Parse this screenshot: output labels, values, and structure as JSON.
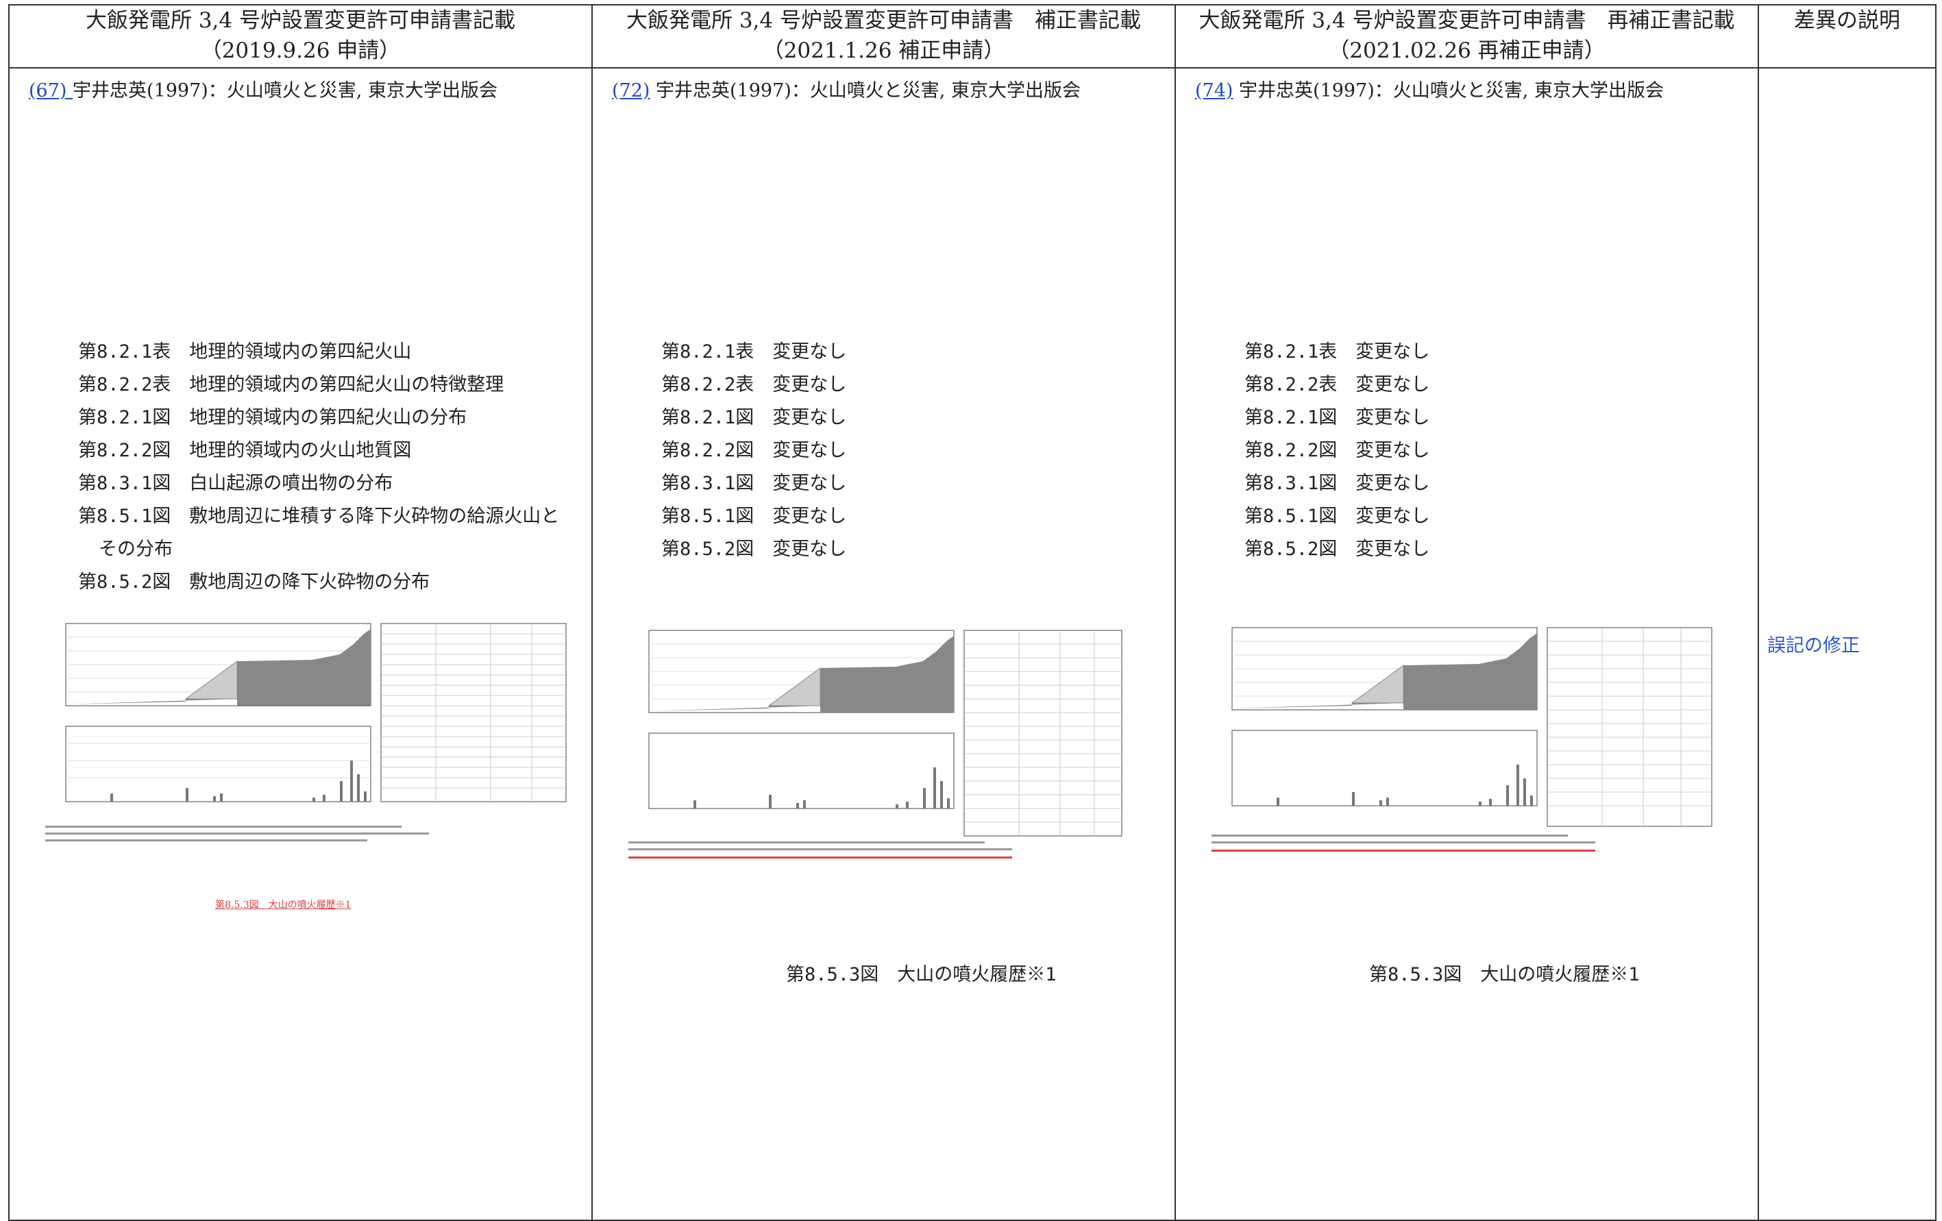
{
  "headers": [
    {
      "title": "大飯発電所 3,4 号炉設置変更許可申請書記載",
      "sub": "（2019.9.26 申請）"
    },
    {
      "title": "大飯発電所 3,4 号炉設置変更許可申請書　補正書記載",
      "sub": "（2021.1.26 補正申請）"
    },
    {
      "title": "大飯発電所 3,4 号炉設置変更許可申請書　再補正書記載",
      "sub": "（2021.02.26 再補正申請）"
    },
    {
      "title": "差異の説明",
      "sub": ""
    }
  ],
  "columns": [
    {
      "ref_num": "(67) ",
      "ref_text": "宇井忠英(1997)：火山噴火と災害, 東京大学出版会",
      "items": [
        "第8.2.1表　地理的領域内の第四紀火山",
        "第8.2.2表　地理的領域内の第四紀火山の特徴整理",
        "第8.2.1図　地理的領域内の第四紀火山の分布",
        "第8.2.2図　地理的領域内の火山地質図",
        "第8.3.1図　白山起源の噴出物の分布",
        "第8.5.1図　敷地周辺に堆積する降下火砕物の給源火山と",
        "その分布",
        "第8.5.2図　敷地周辺の降下火砕物の分布"
      ],
      "small_caption": "第8.5.3図　大山の噴火履歴※1"
    },
    {
      "ref_num": "(72)",
      "ref_text": " 宇井忠英(1997)：火山噴火と災害, 東京大学出版会",
      "items": [
        "第8.2.1表　変更なし",
        "第8.2.2表　変更なし",
        "第8.2.1図　変更なし",
        "第8.2.2図　変更なし",
        "第8.3.1図　変更なし",
        "第8.5.1図　変更なし",
        "第8.5.2図　変更なし"
      ],
      "caption": "第8.5.3図　大山の噴火履歴※1"
    },
    {
      "ref_num": "(74)",
      "ref_text": " 宇井忠英(1997)：火山噴火と災害, 東京大学出版会",
      "items": [
        "第8.2.1表　変更なし",
        "第8.2.2表　変更なし",
        "第8.2.1図　変更なし",
        "第8.2.2図　変更なし",
        "第8.3.1図　変更なし",
        "第8.5.1図　変更なし",
        "第8.5.2図　変更なし"
      ],
      "caption": "第8.5.3図　大山の噴火履歴※1"
    }
  ],
  "difference_note": "誤記の修正",
  "colors": {
    "link": "#1f48c8",
    "note": "#2a5ad0",
    "red": "#e04040"
  }
}
